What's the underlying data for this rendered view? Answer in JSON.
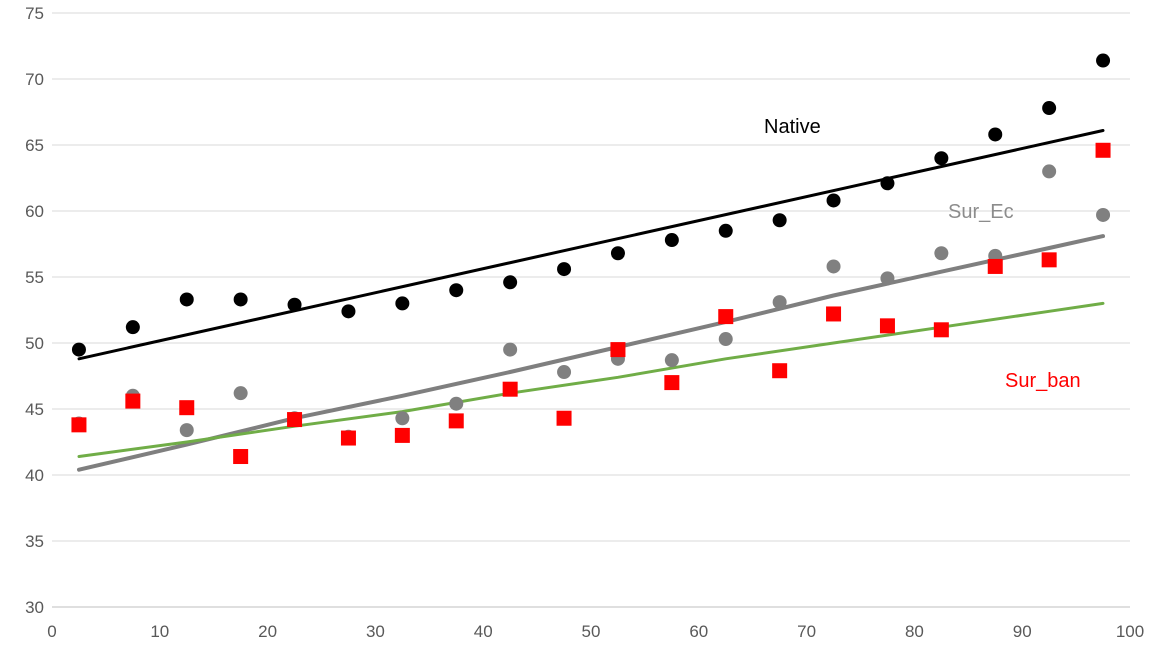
{
  "chart_data": {
    "type": "scatter",
    "title": "",
    "xlabel": "",
    "ylabel": "",
    "xlim": [
      0,
      100
    ],
    "ylim": [
      30,
      75
    ],
    "x_ticks": [
      "0",
      "10",
      "20",
      "30",
      "40",
      "50",
      "60",
      "70",
      "80",
      "90",
      "100"
    ],
    "y_ticks": [
      "30",
      "35",
      "40",
      "45",
      "50",
      "55",
      "60",
      "65",
      "70",
      "75"
    ],
    "grid": "horizontal",
    "legend": "none",
    "series": [
      {
        "name": "Native",
        "marker": "circle",
        "color": "#000000",
        "x": [
          2.5,
          7.5,
          12.5,
          17.5,
          22.5,
          27.5,
          32.5,
          37.5,
          42.5,
          47.5,
          52.5,
          57.5,
          62.5,
          67.5,
          72.5,
          77.5,
          82.5,
          87.5,
          92.5,
          97.5
        ],
        "y": [
          49.5,
          51.2,
          53.3,
          53.3,
          52.9,
          52.4,
          53.0,
          54.0,
          54.6,
          55.6,
          56.8,
          57.8,
          58.5,
          59.3,
          60.8,
          62.1,
          64.0,
          65.8,
          67.8,
          71.4
        ],
        "trend": {
          "type": "linear",
          "x": [
            2.5,
            97.5
          ],
          "y": [
            48.8,
            66.1
          ]
        },
        "trend_color": "#000000"
      },
      {
        "name": "Sur_Ec",
        "marker": "circle",
        "color": "#808080",
        "x": [
          2.5,
          7.5,
          12.5,
          17.5,
          22.5,
          27.5,
          32.5,
          37.5,
          42.5,
          47.5,
          52.5,
          57.5,
          62.5,
          67.5,
          72.5,
          77.5,
          82.5,
          87.5,
          92.5,
          97.5
        ],
        "y": [
          43.9,
          46.0,
          43.4,
          46.2,
          44.3,
          42.9,
          44.3,
          45.4,
          49.5,
          47.8,
          48.8,
          48.7,
          50.3,
          53.1,
          55.8,
          54.9,
          56.8,
          56.6,
          63.0,
          59.7
        ],
        "trend": {
          "type": "polynomial",
          "x": [
            2.5,
            12.5,
            22.5,
            32.5,
            42.5,
            52.5,
            62.5,
            72.5,
            82.5,
            92.5,
            97.5
          ],
          "y": [
            40.4,
            42.3,
            44.3,
            46.0,
            47.8,
            49.7,
            51.6,
            53.6,
            55.4,
            57.2,
            58.1
          ]
        },
        "trend_color": "#7f7f7f"
      },
      {
        "name": "Sur_ban",
        "marker": "square",
        "color": "#ff0000",
        "x": [
          2.5,
          7.5,
          12.5,
          17.5,
          22.5,
          27.5,
          32.5,
          37.5,
          42.5,
          47.5,
          52.5,
          57.5,
          62.5,
          67.5,
          72.5,
          77.5,
          82.5,
          87.5,
          92.5,
          97.5
        ],
        "y": [
          43.8,
          45.6,
          45.1,
          41.4,
          44.2,
          42.8,
          43.0,
          44.1,
          46.5,
          44.3,
          49.5,
          47.0,
          52.0,
          47.9,
          52.2,
          51.3,
          51.0,
          55.8,
          56.3,
          64.6
        ],
        "trend": {
          "type": "polynomial",
          "x": [
            2.5,
            12.5,
            22.5,
            32.5,
            42.5,
            52.5,
            62.5,
            72.5,
            82.5,
            92.5,
            97.5
          ],
          "y": [
            41.4,
            42.5,
            43.7,
            44.8,
            46.2,
            47.4,
            48.8,
            50.0,
            51.2,
            52.4,
            53.0
          ]
        },
        "trend_color": "#70ad47"
      }
    ]
  }
}
